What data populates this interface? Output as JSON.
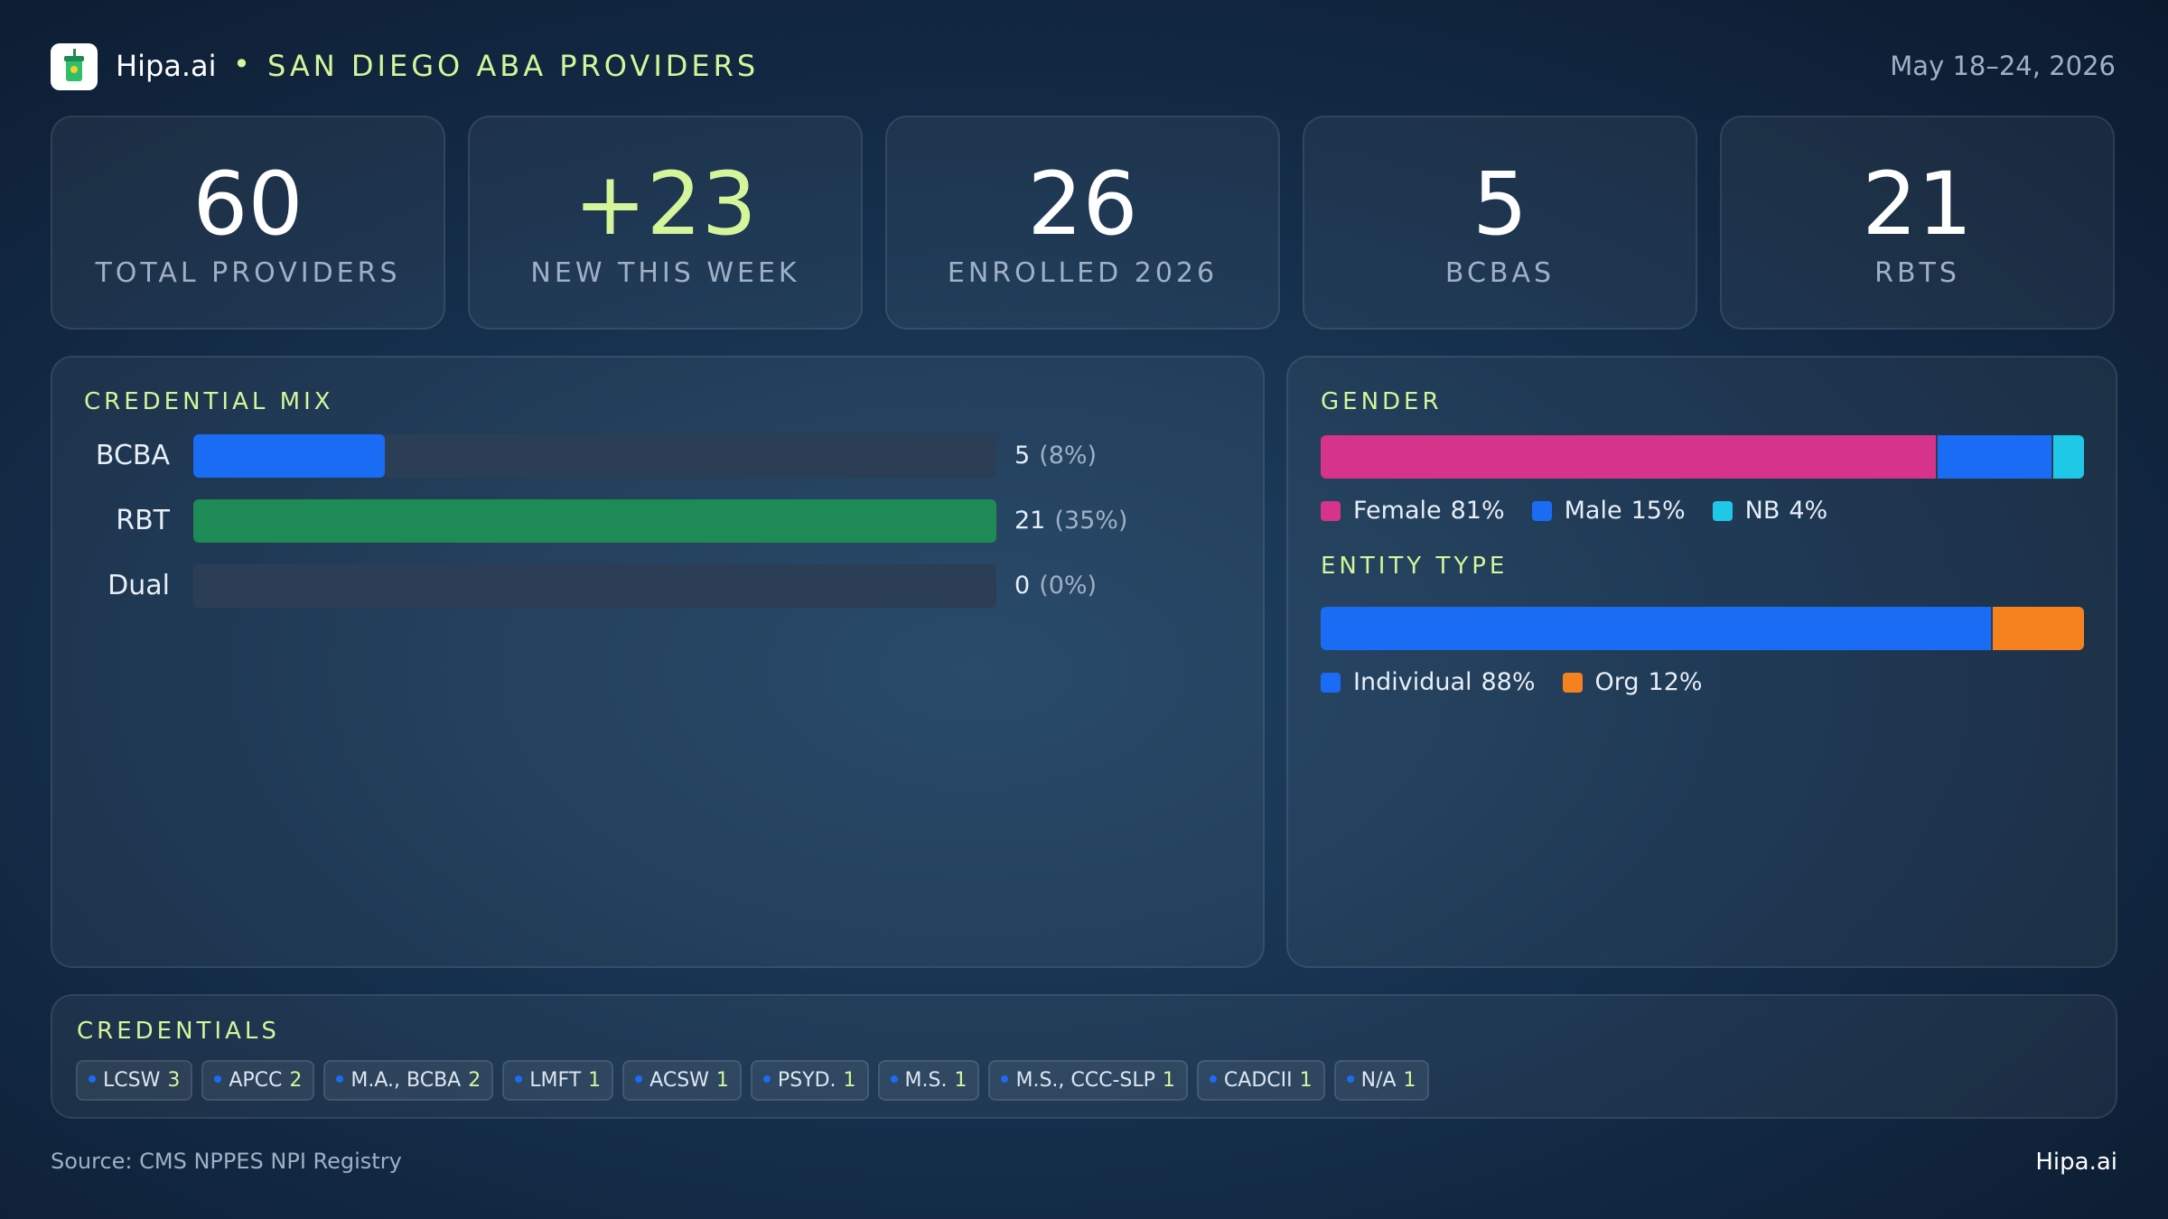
{
  "header": {
    "brand": "Hipa.ai",
    "title": "SAN DIEGO ABA PROVIDERS",
    "date": "May 18–24, 2026"
  },
  "kpis": [
    {
      "value": "60",
      "label": "TOTAL PROVIDERS",
      "color": "#ffffff"
    },
    {
      "value": "+23",
      "label": "NEW THIS WEEK",
      "color": "#d4f59a"
    },
    {
      "value": "26",
      "label": "ENROLLED 2026",
      "color": "#ffffff"
    },
    {
      "value": "5",
      "label": "BCBAS",
      "color": "#ffffff"
    },
    {
      "value": "21",
      "label": "RBTS",
      "color": "#ffffff"
    }
  ],
  "credential_mix": {
    "title": "CREDENTIAL MIX",
    "rows": [
      {
        "label": "BCBA",
        "value": 5,
        "percent": {
          "value": 8,
          "label": "(8%)"
        },
        "color": "#1a6cf5"
      },
      {
        "label": "RBT",
        "value": 21,
        "percent": {
          "value": 35,
          "label": "(35%)"
        },
        "color": "#1e8a55"
      },
      {
        "label": "Dual",
        "value": 0,
        "percent": {
          "value": 0,
          "label": "(0%)"
        },
        "color": "#1a6cf5"
      }
    ]
  },
  "gender": {
    "title": "GENDER",
    "segments": [
      {
        "name": "Female",
        "value": 81,
        "label": "81%",
        "color": "#d6348a"
      },
      {
        "name": "Male",
        "value": 15,
        "label": "15%",
        "color": "#1a6cf5"
      },
      {
        "name": "NB",
        "value": 4,
        "label": "4%",
        "color": "#1ec8e6"
      }
    ]
  },
  "entity_type": {
    "title": "ENTITY TYPE",
    "segments": [
      {
        "name": "Individual",
        "value": 88,
        "label": "88%",
        "color": "#1a6cf5"
      },
      {
        "name": "Org",
        "value": 12,
        "label": "12%",
        "color": "#f5821f"
      }
    ]
  },
  "credentials": {
    "title": "CREDENTIALS",
    "items": [
      {
        "name": "LCSW",
        "count": 3
      },
      {
        "name": "APCC",
        "count": 2
      },
      {
        "name": "M.A., BCBA",
        "count": 2
      },
      {
        "name": "LMFT",
        "count": 1
      },
      {
        "name": "ACSW",
        "count": 1
      },
      {
        "name": "PSYD.",
        "count": 1
      },
      {
        "name": "M.S.",
        "count": 1
      },
      {
        "name": "M.S., CCC-SLP",
        "count": 1
      },
      {
        "name": "CADCII",
        "count": 1
      },
      {
        "name": "N/A",
        "count": 1
      }
    ]
  },
  "footer": {
    "source": "Source: CMS NPPES NPI Registry"
  }
}
